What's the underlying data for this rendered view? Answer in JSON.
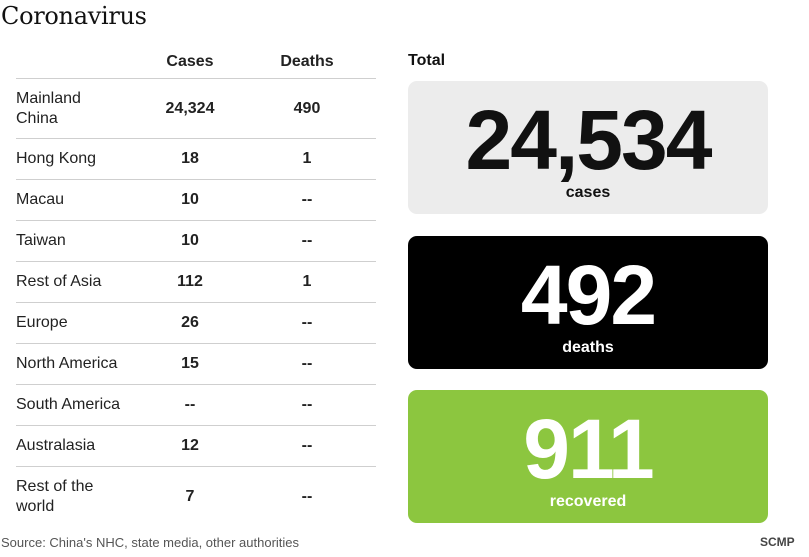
{
  "title": "Coronavirus",
  "table": {
    "headers": {
      "cases": "Cases",
      "deaths": "Deaths"
    },
    "rows": [
      {
        "region": "Mainland China",
        "cases": "24,324",
        "deaths": "490"
      },
      {
        "region": "Hong Kong",
        "cases": "18",
        "deaths": "1"
      },
      {
        "region": "Macau",
        "cases": "10",
        "deaths": "--"
      },
      {
        "region": "Taiwan",
        "cases": "10",
        "deaths": "--"
      },
      {
        "region": "Rest of Asia",
        "cases": "112",
        "deaths": "1"
      },
      {
        "region": "Europe",
        "cases": "26",
        "deaths": "--"
      },
      {
        "region": "North America",
        "cases": "15",
        "deaths": "--"
      },
      {
        "region": "South America",
        "cases": "--",
        "deaths": "--"
      },
      {
        "region": "Australasia",
        "cases": "12",
        "deaths": "--"
      },
      {
        "region": "Rest of the world",
        "cases": "7",
        "deaths": "--"
      }
    ]
  },
  "totals": {
    "label": "Total",
    "cases": {
      "value": "24,534",
      "label": "cases",
      "color": "#ececec"
    },
    "deaths": {
      "value": "492",
      "label": "deaths",
      "color": "#000000"
    },
    "recovered": {
      "value": "911",
      "label": "recovered",
      "color": "#8cc63f"
    }
  },
  "source": "Source: China's NHC, state media, other authorities",
  "brand": "SCMP"
}
